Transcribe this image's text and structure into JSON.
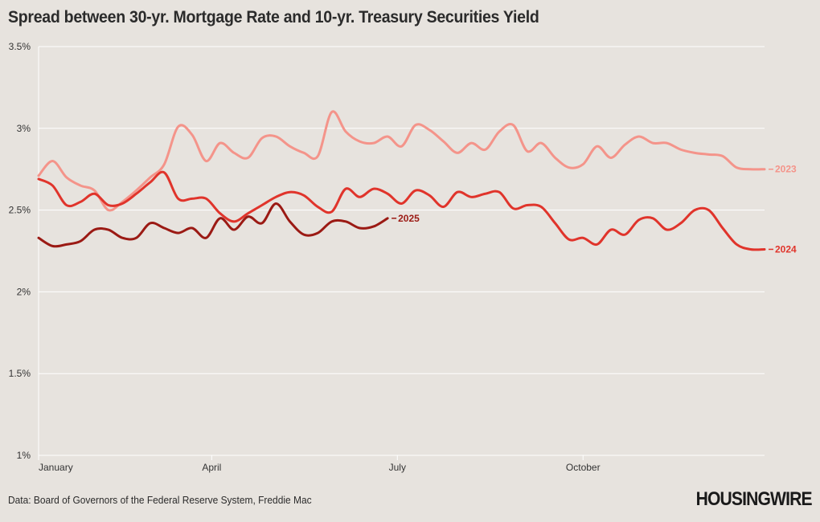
{
  "title": "Spread between 30-yr. Mortgage Rate and 10-yr. Treasury Securities Yield",
  "source": "Data: Board of Governors of the Federal Reserve System, Freddie Mac",
  "logo": "HOUSINGWIRE",
  "chart_data": {
    "type": "line",
    "title": "Spread between 30-yr. Mortgage Rate and 10-yr. Treasury Securities Yield",
    "xlabel": "",
    "ylabel": "",
    "ylim": [
      1,
      3.5
    ],
    "xlim": [
      0,
      52
    ],
    "x_unit": "week of year",
    "y_ticks": [
      {
        "value": 1,
        "label": "1%"
      },
      {
        "value": 1.5,
        "label": "1.5%"
      },
      {
        "value": 2,
        "label": "2%"
      },
      {
        "value": 2.5,
        "label": "2.5%"
      },
      {
        "value": 3,
        "label": "3%"
      },
      {
        "value": 3.5,
        "label": "3.5%"
      }
    ],
    "x_ticks": [
      {
        "value": 0,
        "label": "January"
      },
      {
        "value": 12.4,
        "label": "April"
      },
      {
        "value": 25.7,
        "label": "July"
      },
      {
        "value": 39,
        "label": "October"
      }
    ],
    "grid": "horizontal",
    "legend": "end-of-line labels",
    "series": [
      {
        "name": "2023",
        "color": "#f4948a",
        "x": [
          0,
          1,
          2,
          3,
          4,
          5,
          6,
          7,
          8,
          9,
          10,
          11,
          12,
          13,
          14,
          15,
          16,
          17,
          18,
          19,
          20,
          21,
          22,
          23,
          24,
          25,
          26,
          27,
          28,
          29,
          30,
          31,
          32,
          33,
          34,
          35,
          36,
          37,
          38,
          39,
          40,
          41,
          42,
          43,
          44,
          45,
          46,
          47,
          48,
          49,
          50,
          51,
          52
        ],
        "values": [
          2.71,
          2.8,
          2.7,
          2.65,
          2.62,
          2.5,
          2.55,
          2.62,
          2.7,
          2.78,
          3.01,
          2.96,
          2.8,
          2.91,
          2.85,
          2.82,
          2.94,
          2.95,
          2.89,
          2.85,
          2.83,
          3.1,
          2.98,
          2.92,
          2.91,
          2.95,
          2.89,
          3.02,
          2.99,
          2.92,
          2.85,
          2.91,
          2.87,
          2.98,
          3.02,
          2.86,
          2.91,
          2.82,
          2.76,
          2.78,
          2.89,
          2.82,
          2.9,
          2.95,
          2.91,
          2.91,
          2.87,
          2.85,
          2.84,
          2.83,
          2.76,
          2.75,
          2.75
        ]
      },
      {
        "name": "2024",
        "color": "#e0342b",
        "x": [
          0,
          1,
          2,
          3,
          4,
          5,
          6,
          7,
          8,
          9,
          10,
          11,
          12,
          13,
          14,
          15,
          16,
          17,
          18,
          19,
          20,
          21,
          22,
          23,
          24,
          25,
          26,
          27,
          28,
          29,
          30,
          31,
          32,
          33,
          34,
          35,
          36,
          37,
          38,
          39,
          40,
          41,
          42,
          43,
          44,
          45,
          46,
          47,
          48,
          49,
          50,
          51,
          52
        ],
        "values": [
          2.69,
          2.65,
          2.53,
          2.55,
          2.6,
          2.53,
          2.54,
          2.6,
          2.67,
          2.73,
          2.57,
          2.57,
          2.57,
          2.48,
          2.43,
          2.48,
          2.53,
          2.58,
          2.61,
          2.59,
          2.52,
          2.49,
          2.63,
          2.58,
          2.63,
          2.6,
          2.54,
          2.62,
          2.59,
          2.52,
          2.61,
          2.58,
          2.6,
          2.61,
          2.51,
          2.53,
          2.52,
          2.42,
          2.32,
          2.33,
          2.29,
          2.38,
          2.35,
          2.44,
          2.45,
          2.38,
          2.42,
          2.5,
          2.5,
          2.39,
          2.29,
          2.26,
          2.26
        ]
      },
      {
        "name": "2025",
        "color": "#9b1a14",
        "x": [
          0,
          1,
          2,
          3,
          4,
          5,
          6,
          7,
          8,
          9,
          10,
          11,
          12,
          13,
          14,
          15,
          16,
          17,
          18,
          19,
          20,
          21,
          22,
          23,
          24,
          25
        ],
        "values": [
          2.33,
          2.28,
          2.29,
          2.31,
          2.38,
          2.38,
          2.33,
          2.33,
          2.42,
          2.39,
          2.36,
          2.39,
          2.33,
          2.45,
          2.38,
          2.46,
          2.42,
          2.54,
          2.43,
          2.35,
          2.36,
          2.43,
          2.43,
          2.39,
          2.4,
          2.45
        ]
      }
    ]
  }
}
